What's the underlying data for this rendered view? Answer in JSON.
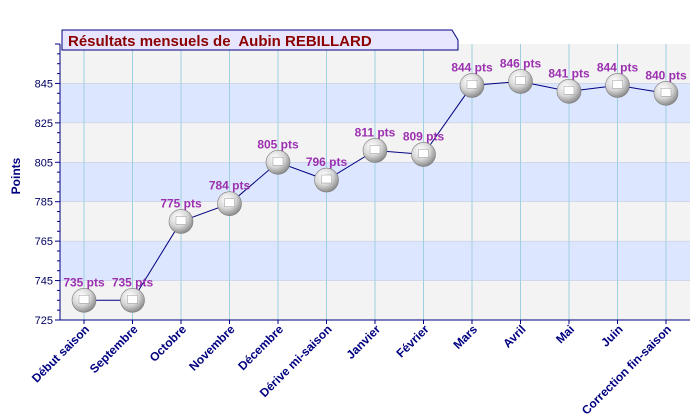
{
  "chart_data": {
    "type": "line",
    "title": "Résultats mensuels de  Aubin REBILLARD",
    "ylabel": "Points",
    "xlabel": "",
    "categories": [
      "Début saison",
      "Septembre",
      "Octobre",
      "Novembre",
      "Décembre",
      "Dérive mi-saison",
      "Janvier",
      "Février",
      "Mars",
      "Avril",
      "Mai",
      "Juin",
      "Correction fin-saison"
    ],
    "values": [
      735,
      735,
      775,
      784,
      805,
      796,
      811,
      809,
      844,
      846,
      841,
      844,
      840
    ],
    "point_labels": [
      "735 pts",
      "735 pts",
      "775 pts",
      "784 pts",
      "805 pts",
      "796 pts",
      "811 pts",
      "809 pts",
      "844 pts",
      "846 pts",
      "841 pts",
      "844 pts",
      "840 pts"
    ],
    "ylim": [
      725,
      865
    ],
    "yticks": [
      725,
      745,
      765,
      785,
      805,
      825,
      845
    ],
    "ytick_labels": [
      "725",
      "745",
      "765",
      "785",
      "805",
      "825",
      "845"
    ],
    "grid": true,
    "colors": {
      "band_blue": "#dde6ff",
      "band_gray": "#f3f3f3",
      "line": "#000080",
      "label": "#9b30b0",
      "title": "#8b0000"
    }
  }
}
